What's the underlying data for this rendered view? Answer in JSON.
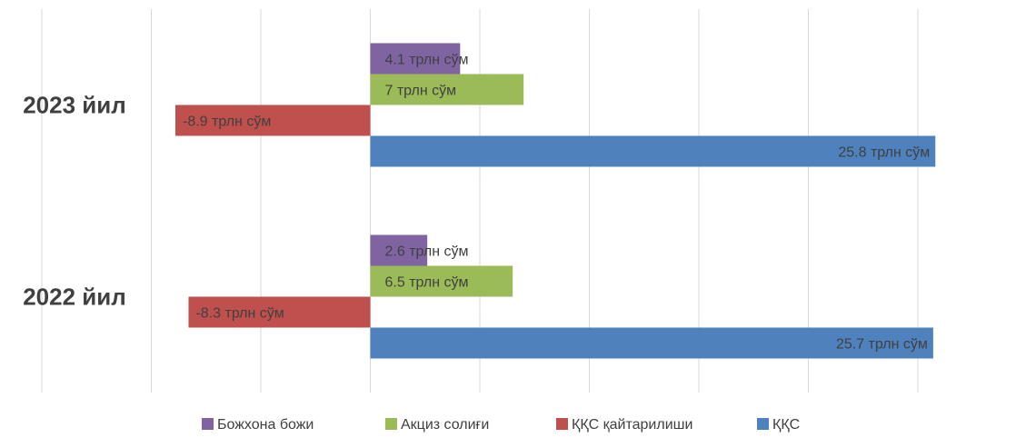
{
  "chart_data": {
    "type": "bar",
    "orientation": "horizontal",
    "categories": [
      "2022 йил",
      "2023 йил"
    ],
    "series": [
      {
        "name": "Божхона божи",
        "color": "#8064A2",
        "values": [
          2.6,
          4.1
        ],
        "labels": [
          "2.6 трлн сўм",
          "4.1 трлн сўм"
        ]
      },
      {
        "name": "Акциз солиғи",
        "color": "#9BBB59",
        "values": [
          6.5,
          7.0
        ],
        "labels": [
          "6.5 трлн сўм",
          "7 трлн сўм"
        ]
      },
      {
        "name": "ҚҚС қайтарилиши",
        "color": "#C0504D",
        "values": [
          -8.3,
          -8.9
        ],
        "labels": [
          "-8.3 трлн сўм",
          "-8.9 трлн сўм"
        ]
      },
      {
        "name": "ҚҚС",
        "color": "#4F81BD",
        "values": [
          25.7,
          25.8
        ],
        "labels": [
          "25.7 трлн сўм",
          "25.8 трлн сўм"
        ]
      }
    ],
    "xlim": [
      -15,
      25
    ],
    "grid": true,
    "legend": "bottom",
    "xlabel": "",
    "ylabel": "",
    "title": ""
  }
}
